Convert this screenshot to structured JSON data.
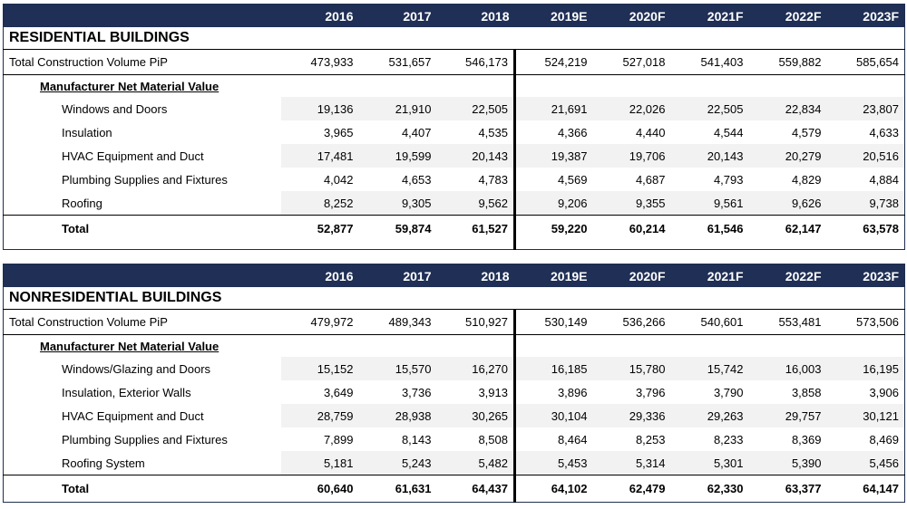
{
  "years": [
    "2016",
    "2017",
    "2018",
    "2019E",
    "2020F",
    "2021F",
    "2022F",
    "2023F"
  ],
  "residential": {
    "title": "RESIDENTIAL BUILDINGS",
    "tcv": {
      "label": "Total Construction Volume PiP",
      "values": [
        "473,933",
        "531,657",
        "546,173",
        "524,219",
        "527,018",
        "541,403",
        "559,882",
        "585,654"
      ]
    },
    "subheading": "Manufacturer Net Material Value",
    "items": [
      {
        "label": "Windows and Doors",
        "values": [
          "19,136",
          "21,910",
          "22,505",
          "21,691",
          "22,026",
          "22,505",
          "22,834",
          "23,807"
        ]
      },
      {
        "label": "Insulation",
        "values": [
          "3,965",
          "4,407",
          "4,535",
          "4,366",
          "4,440",
          "4,544",
          "4,579",
          "4,633"
        ]
      },
      {
        "label": "HVAC Equipment and Duct",
        "values": [
          "17,481",
          "19,599",
          "20,143",
          "19,387",
          "19,706",
          "20,143",
          "20,279",
          "20,516"
        ]
      },
      {
        "label": "Plumbing Supplies and Fixtures",
        "values": [
          "4,042",
          "4,653",
          "4,783",
          "4,569",
          "4,687",
          "4,793",
          "4,829",
          "4,884"
        ]
      },
      {
        "label": "Roofing",
        "values": [
          "8,252",
          "9,305",
          "9,562",
          "9,206",
          "9,355",
          "9,561",
          "9,626",
          "9,738"
        ]
      }
    ],
    "total": {
      "label": "Total",
      "values": [
        "52,877",
        "59,874",
        "61,527",
        "59,220",
        "60,214",
        "61,546",
        "62,147",
        "63,578"
      ]
    }
  },
  "nonresidential": {
    "title": "NONRESIDENTIAL BUILDINGS",
    "tcv": {
      "label": "Total Construction Volume PiP",
      "values": [
        "479,972",
        "489,343",
        "510,927",
        "530,149",
        "536,266",
        "540,601",
        "553,481",
        "573,506"
      ]
    },
    "subheading": "Manufacturer Net Material Value",
    "items": [
      {
        "label": "Windows/Glazing and Doors",
        "values": [
          "15,152",
          "15,570",
          "16,270",
          "16,185",
          "15,780",
          "15,742",
          "16,003",
          "16,195"
        ]
      },
      {
        "label": "Insulation, Exterior Walls",
        "values": [
          "3,649",
          "3,736",
          "3,913",
          "3,896",
          "3,796",
          "3,790",
          "3,858",
          "3,906"
        ]
      },
      {
        "label": "HVAC Equipment and Duct",
        "values": [
          "28,759",
          "28,938",
          "30,265",
          "30,104",
          "29,336",
          "29,263",
          "29,757",
          "30,121"
        ]
      },
      {
        "label": "Plumbing Supplies and Fixtures",
        "values": [
          "7,899",
          "8,143",
          "8,508",
          "8,464",
          "8,253",
          "8,233",
          "8,369",
          "8,469"
        ]
      },
      {
        "label": "Roofing System",
        "values": [
          "5,181",
          "5,243",
          "5,482",
          "5,453",
          "5,314",
          "5,301",
          "5,390",
          "5,456"
        ]
      }
    ],
    "total": {
      "label": "Total",
      "values": [
        "60,640",
        "61,631",
        "64,437",
        "64,102",
        "62,479",
        "62,330",
        "63,377",
        "64,147"
      ]
    }
  }
}
